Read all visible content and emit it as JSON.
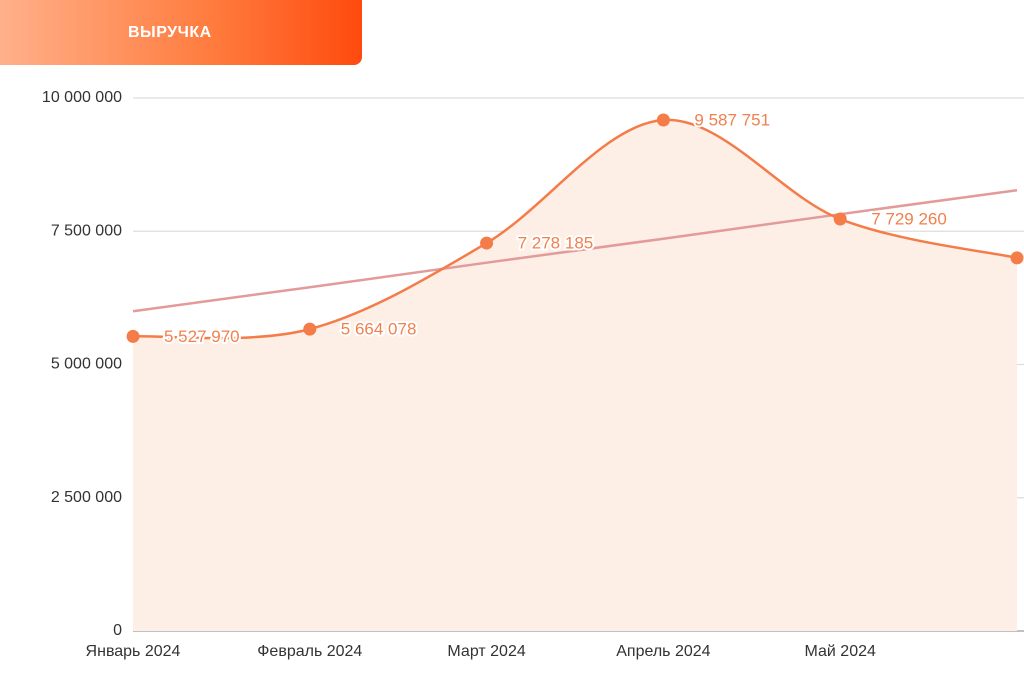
{
  "header": {
    "tab": "ВЫРУЧКА"
  },
  "chart_data": {
    "type": "line",
    "categories": [
      "Январь 2024",
      "Февраль 2024",
      "Март 2024",
      "Апрель 2024",
      "Май 2024",
      null
    ],
    "series": [
      {
        "color": "#f47c48",
        "fill": "#fdeee6",
        "values": [
          5527970,
          5664078,
          7278185,
          9587751,
          7729260,
          7000000
        ],
        "value_labels": [
          "5 527 970",
          "5 664 078",
          "7 278 185",
          "9 587 751",
          "7 729 260",
          null
        ]
      },
      {
        "color": "#e39a9a",
        "values": [
          6000000,
          6450000,
          6910000,
          7360000,
          7820000,
          8270000
        ]
      }
    ],
    "ylim": [
      0,
      10000000
    ],
    "yticks": [
      0,
      {
        "value": 2500000,
        "label": "2 500 000"
      },
      {
        "value": 5000000,
        "label": "5 000 000"
      },
      {
        "value": 7500000,
        "label": "7 500 000"
      },
      {
        "value": 10000000,
        "label": "10 000 000"
      }
    ],
    "grid": true
  }
}
